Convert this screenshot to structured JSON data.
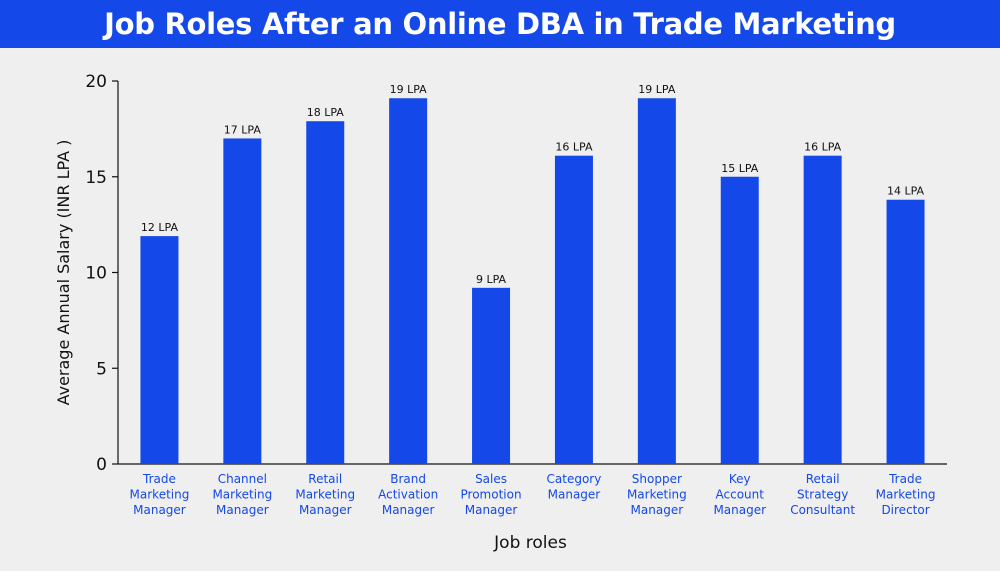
{
  "title": "Job Roles After an Online DBA in Trade Marketing",
  "colors": {
    "header": "#1448e8",
    "bar": "#1448e8",
    "category_text": "#1448e8",
    "axis": "#111111",
    "background": "#efefef"
  },
  "chart_data": {
    "type": "bar",
    "xlabel": "Job roles",
    "ylabel": "Average Annual Salary (INR LPA )",
    "ylim": [
      0,
      20
    ],
    "yticks": [
      0,
      5,
      10,
      15,
      20
    ],
    "grid": false,
    "categories": [
      [
        "Trade",
        "Marketing",
        "Manager"
      ],
      [
        "Channel",
        "Marketing",
        "Manager"
      ],
      [
        "Retail",
        "Marketing",
        "Manager"
      ],
      [
        "Brand",
        "Activation",
        "Manager"
      ],
      [
        "Sales",
        "Promotion",
        "Manager"
      ],
      [
        "Category",
        "Manager"
      ],
      [
        "Shopper",
        "Marketing",
        "Manager"
      ],
      [
        "Key",
        "Account",
        "Manager"
      ],
      [
        "Retail",
        "Strategy",
        "Consultant"
      ],
      [
        "Trade",
        "Marketing",
        "Director"
      ]
    ],
    "values": [
      11.9,
      17.0,
      17.9,
      19.1,
      9.2,
      16.1,
      19.1,
      15.0,
      16.1,
      13.8
    ],
    "data_labels": [
      "12 LPA",
      "17 LPA",
      "18 LPA",
      "19 LPA",
      "9 LPA",
      "16 LPA",
      "19 LPA",
      "15 LPA",
      "16 LPA",
      "14 LPA"
    ]
  }
}
